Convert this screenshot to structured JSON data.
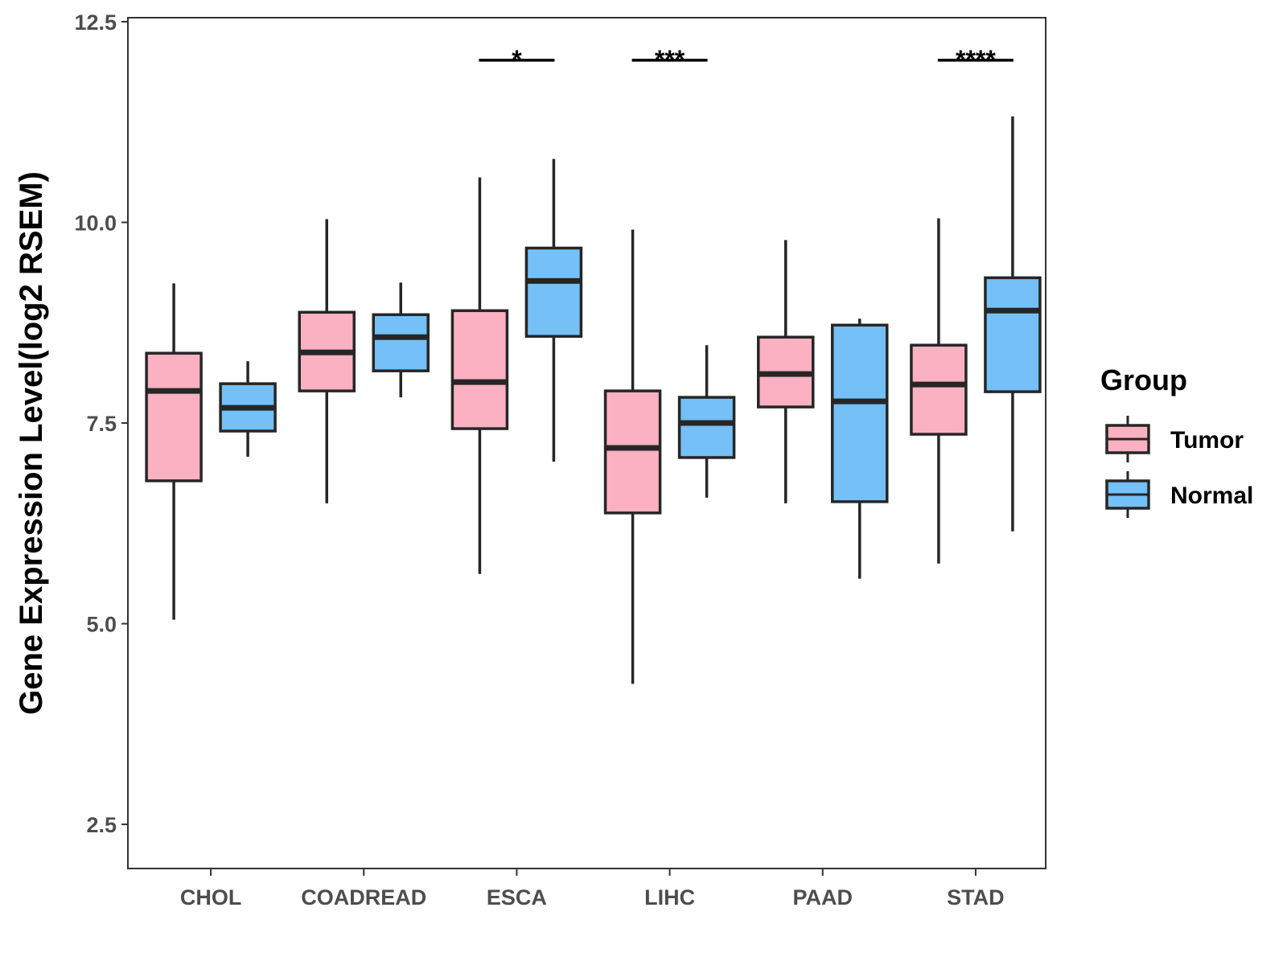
{
  "chart_data": {
    "type": "boxplot",
    "title": "",
    "xlabel": "",
    "ylabel": "Gene Expression Level(log2 RSEM)",
    "ylim": [
      1.95,
      12.55
    ],
    "yticks": [
      "2.5",
      "5.0",
      "7.5",
      "10.0",
      "12.5"
    ],
    "ytick_values": [
      2.5,
      5.0,
      7.5,
      10.0,
      12.5
    ],
    "categories": [
      "CHOL",
      "COADREAD",
      "ESCA",
      "LIHC",
      "PAAD",
      "STAD"
    ],
    "legend": {
      "title": "Group",
      "position": "right",
      "entries": [
        "Tumor",
        "Normal"
      ]
    },
    "series": [
      {
        "name": "Tumor",
        "color": "#FBB1C1",
        "boxes": [
          {
            "category": "CHOL",
            "min": 5.05,
            "q1": 6.78,
            "median": 7.9,
            "q3": 8.37,
            "max": 9.24
          },
          {
            "category": "COADREAD",
            "min": 6.5,
            "q1": 7.9,
            "median": 8.38,
            "q3": 8.88,
            "max": 10.04
          },
          {
            "category": "ESCA",
            "min": 5.62,
            "q1": 7.43,
            "median": 8.01,
            "q3": 8.9,
            "max": 10.56
          },
          {
            "category": "LIHC",
            "min": 4.25,
            "q1": 6.38,
            "median": 7.19,
            "q3": 7.9,
            "max": 9.91
          },
          {
            "category": "PAAD",
            "min": 6.5,
            "q1": 7.7,
            "median": 8.11,
            "q3": 8.57,
            "max": 9.78
          },
          {
            "category": "STAD",
            "min": 5.75,
            "q1": 7.36,
            "median": 7.98,
            "q3": 8.47,
            "max": 10.05
          }
        ]
      },
      {
        "name": "Normal",
        "color": "#74C0F7",
        "boxes": [
          {
            "category": "CHOL",
            "min": 7.08,
            "q1": 7.4,
            "median": 7.69,
            "q3": 7.99,
            "max": 8.27
          },
          {
            "category": "COADREAD",
            "min": 7.82,
            "q1": 8.15,
            "median": 8.57,
            "q3": 8.85,
            "max": 9.25
          },
          {
            "category": "ESCA",
            "min": 7.02,
            "q1": 8.58,
            "median": 9.27,
            "q3": 9.68,
            "max": 10.79
          },
          {
            "category": "LIHC",
            "min": 6.57,
            "q1": 7.07,
            "median": 7.5,
            "q3": 7.82,
            "max": 8.47
          },
          {
            "category": "PAAD",
            "min": 5.56,
            "q1": 6.52,
            "median": 7.77,
            "q3": 8.72,
            "max": 8.8
          },
          {
            "category": "STAD",
            "min": 6.15,
            "q1": 7.89,
            "median": 8.9,
            "q3": 9.31,
            "max": 11.32
          }
        ]
      }
    ],
    "significance": [
      {
        "category": "ESCA",
        "label": "*",
        "y": 12.0
      },
      {
        "category": "LIHC",
        "label": "***",
        "y": 12.0
      },
      {
        "category": "STAD",
        "label": "****",
        "y": 12.0
      }
    ]
  }
}
